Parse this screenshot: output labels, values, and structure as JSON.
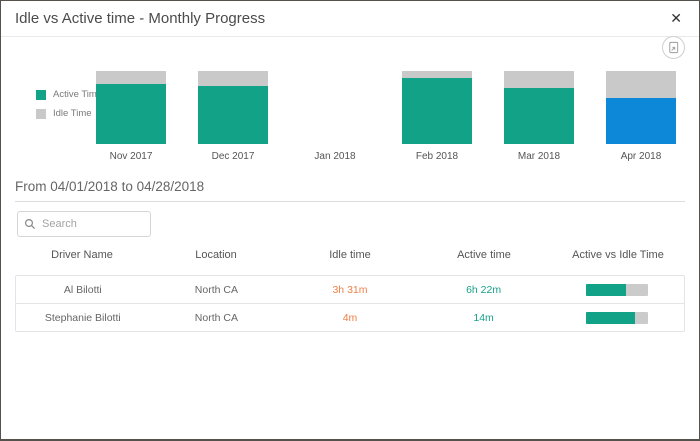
{
  "dialog": {
    "title": "Idle vs Active time - Monthly Progress"
  },
  "icons": {
    "close": "✕",
    "export": "export-image-icon",
    "search": "search-icon"
  },
  "chart_data": {
    "type": "bar",
    "stacked": true,
    "unit": "percent_of_month_total",
    "categories": [
      "Nov 2017",
      "Dec 2017",
      "Jan 2018",
      "Feb 2018",
      "Mar 2018",
      "Apr 2018"
    ],
    "series": [
      {
        "name": "Active Time",
        "color": "#12a287",
        "values_pct": [
          82,
          79,
          0,
          91,
          77,
          63
        ]
      },
      {
        "name": "Idle Time",
        "color": "#c9c9c9",
        "values_pct": [
          18,
          21,
          0,
          9,
          23,
          37
        ]
      }
    ],
    "selected_category": "Apr 2018",
    "selected_color": "#0d88d8",
    "legend_position": "left",
    "title": "Idle vs Active time - Monthly Progress"
  },
  "period": {
    "label": "From 04/01/2018 to 04/28/2018"
  },
  "search": {
    "placeholder": "Search"
  },
  "table": {
    "columns": [
      "Driver Name",
      "Location",
      "Idle time",
      "Active time",
      "Active vs Idle Time"
    ],
    "rows": [
      {
        "driver": "Al Bilotti",
        "location": "North CA",
        "idle": "3h 31m",
        "active": "6h 22m",
        "active_pct": 64
      },
      {
        "driver": "Stephanie Bilotti",
        "location": "North CA",
        "idle": "4m",
        "active": "14m",
        "active_pct": 78
      }
    ]
  },
  "colors": {
    "active": "#12a287",
    "idle": "#c9c9c9",
    "selected": "#0d88d8",
    "idle_text": "#ed8048",
    "active_text": "#17a189"
  }
}
